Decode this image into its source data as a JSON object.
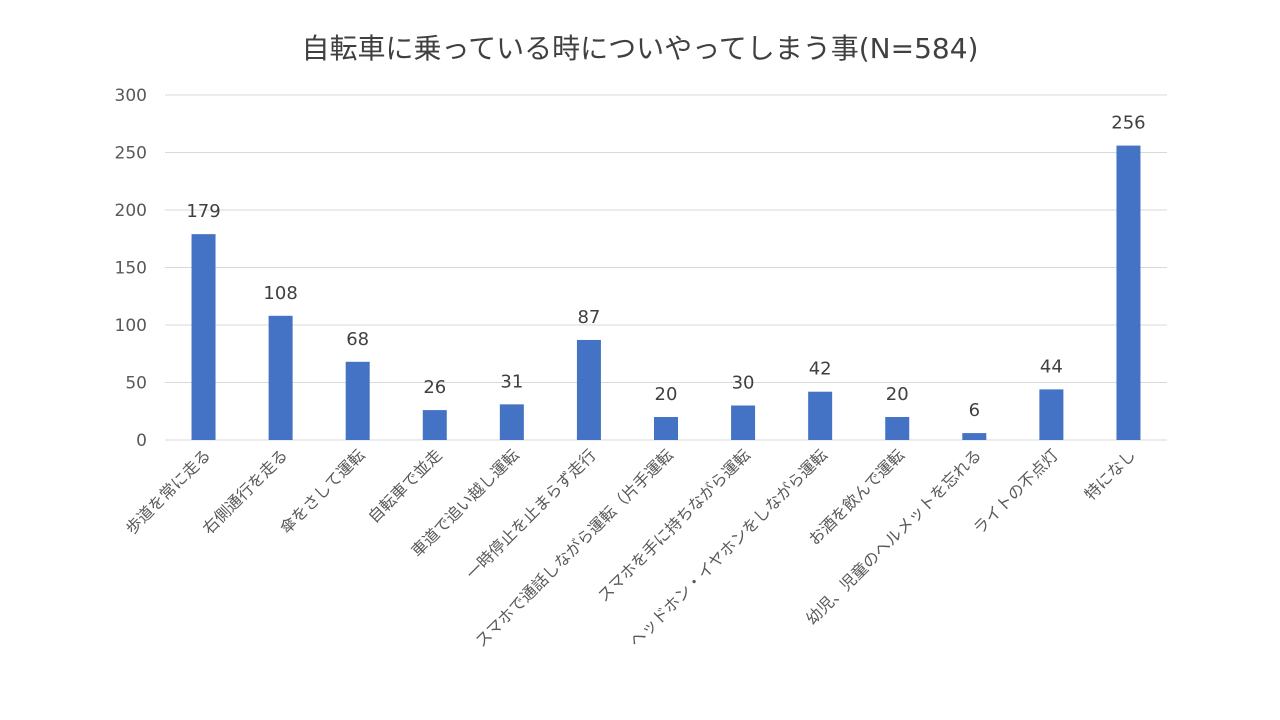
{
  "chart_data": {
    "type": "bar",
    "title": "自転車に乗っている時についやってしまう事(N=584)",
    "categories": [
      "歩道を常に走る",
      "右側通行を走る",
      "傘をさして運転",
      "自転車で並走",
      "車道で追い越し運転",
      "一時停止を止まらず走行",
      "スマホで通話しながら運転（片手運転",
      "スマホを手に持ちながら運転",
      "ヘッドホン・イヤホンをしながら運転",
      "お酒を飲んで運転",
      "幼児、児童のヘルメットを忘れる",
      "ライトの不点灯",
      "特になし"
    ],
    "values": [
      179,
      108,
      68,
      26,
      31,
      87,
      20,
      30,
      42,
      20,
      6,
      44,
      256
    ],
    "ylim": [
      0,
      300
    ],
    "yticks": [
      0,
      50,
      100,
      150,
      200,
      250,
      300
    ],
    "grid": true,
    "legend": "none",
    "colors": {
      "bar": "#4472c4"
    }
  }
}
